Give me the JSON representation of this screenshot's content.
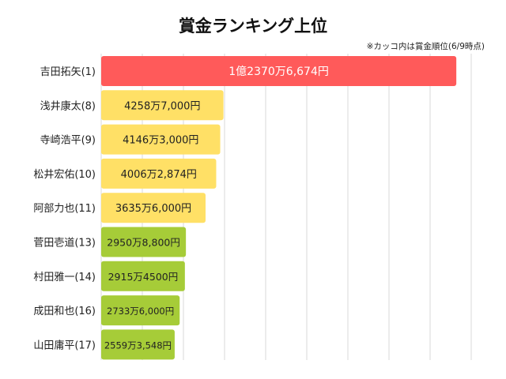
{
  "chart_data": {
    "type": "bar",
    "orientation": "horizontal",
    "title": "賞金ランキング上位",
    "note": "※カッコ内は賞金順位(6/9時点)",
    "grid": true,
    "categories": [
      "吉田拓矢(1)",
      "浅井康太(8)",
      "寺崎浩平(9)",
      "松井宏佑(10)",
      "阿部力也(11)",
      "菅田壱道(13)",
      "村田雅一(14)",
      "成田和也(16)",
      "山田庸平(17)"
    ],
    "values": [
      123706674,
      42587000,
      41463000,
      40062874,
      36356000,
      29508800,
      29154500,
      27336000,
      25593548
    ],
    "value_labels": [
      "1億2370万6,674円",
      "4258万7,000円",
      "4146万3,000円",
      "4006万2,874円",
      "3635万6,000円",
      "2950万8,800円",
      "2915万4500円",
      "2733万6,000円",
      "2559万3,548円"
    ],
    "bar_colors": [
      "#ff5a5a",
      "#ffe066",
      "#ffe066",
      "#ffe066",
      "#ffe066",
      "#a6cc38",
      "#a6cc38",
      "#a6cc38",
      "#a6cc38"
    ],
    "label_colors": [
      "#ffffff",
      "#222222",
      "#222222",
      "#222222",
      "#222222",
      "#222222",
      "#222222",
      "#222222",
      "#222222"
    ],
    "xlim": [
      0,
      130000000
    ]
  }
}
